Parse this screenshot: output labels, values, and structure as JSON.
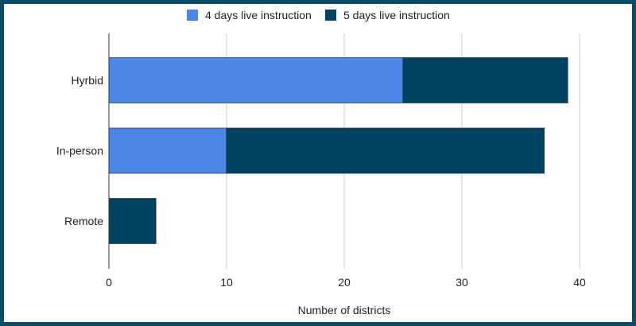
{
  "colors": {
    "frame": "#0b4d66",
    "grid": "#cfcfcf",
    "axis": "#333333"
  },
  "chart_data": {
    "type": "bar",
    "orientation": "horizontal",
    "stacked": true,
    "categories": [
      "Hyrbid",
      "In-person",
      "Remote"
    ],
    "series": [
      {
        "name": "4 days live instruction",
        "color": "#4a87e8",
        "values": [
          25,
          10,
          0
        ]
      },
      {
        "name": "5 days live instruction",
        "color": "#004261",
        "values": [
          14,
          27,
          4
        ]
      }
    ],
    "xlabel": "Number of districts",
    "ylabel": "",
    "xlim": [
      0,
      45
    ],
    "xticks": [
      0,
      10,
      20,
      30,
      40
    ],
    "grid": true,
    "legend_position": "top"
  }
}
